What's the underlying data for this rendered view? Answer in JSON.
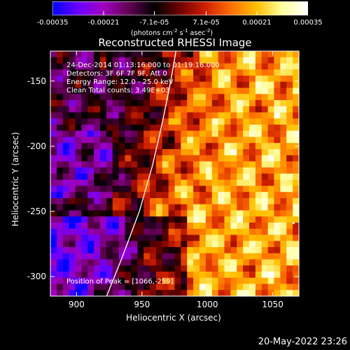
{
  "chart_data": {
    "type": "heatmap",
    "title": "Reconstructed RHESSI Image",
    "xlabel": "Heliocentric X (arcsec)",
    "ylabel": "Heliocentric Y (arcsec)",
    "xlim": [
      880,
      1070
    ],
    "ylim": [
      -315,
      -127
    ],
    "xticks": [
      "900",
      "950",
      "1000",
      "1050"
    ],
    "xtick_values": [
      900,
      950,
      1000,
      1050
    ],
    "yticks": [
      "-150",
      "-200",
      "-250",
      "-300"
    ],
    "ytick_values": [
      -150,
      -200,
      -250,
      -300
    ],
    "colorbar": {
      "range": [
        -0.00035,
        0.00035
      ],
      "tick_labels": [
        "-0.00035",
        "-0.00021",
        "-7.1e-05",
        "7.1e-05",
        "0.00021",
        "0.00035"
      ],
      "tick_values": [
        -0.00035,
        -0.00021,
        -7.1e-05,
        7.1e-05,
        0.00021,
        0.00035
      ],
      "units_text": "(photons cm",
      "units_exp1": "-2",
      "units_mid1": " s",
      "units_exp2": "-1",
      "units_mid2": " asec",
      "units_exp3": "-2",
      "units_end": ")",
      "colors": [
        "#0000ff",
        "#6a00ff",
        "#a000c0",
        "#600050",
        "#000000",
        "#700000",
        "#d02000",
        "#ff7000",
        "#ffc000",
        "#ffffa0",
        "#ffffff"
      ]
    },
    "annotations": [
      "24-Dec-2014 01:13:16.000 to 01:19:16.000",
      "Detectors: 3F 6F 7F 9F, Att 0",
      "Energy Range: 12.0 - 25.0 keV",
      "Clean     Total counts: 3.49E+03"
    ],
    "peak_label": "Position of Peak = [1066,-259]",
    "peak": [
      1066,
      -259
    ],
    "limb_curve_points": [
      [
        923,
        -315
      ],
      [
        935,
        -285
      ],
      [
        948,
        -250
      ],
      [
        958,
        -215
      ],
      [
        966,
        -180
      ],
      [
        972,
        -150
      ],
      [
        976,
        -127
      ]
    ],
    "grid": false
  },
  "footer_timestamp": "20-May-2022 23:26"
}
